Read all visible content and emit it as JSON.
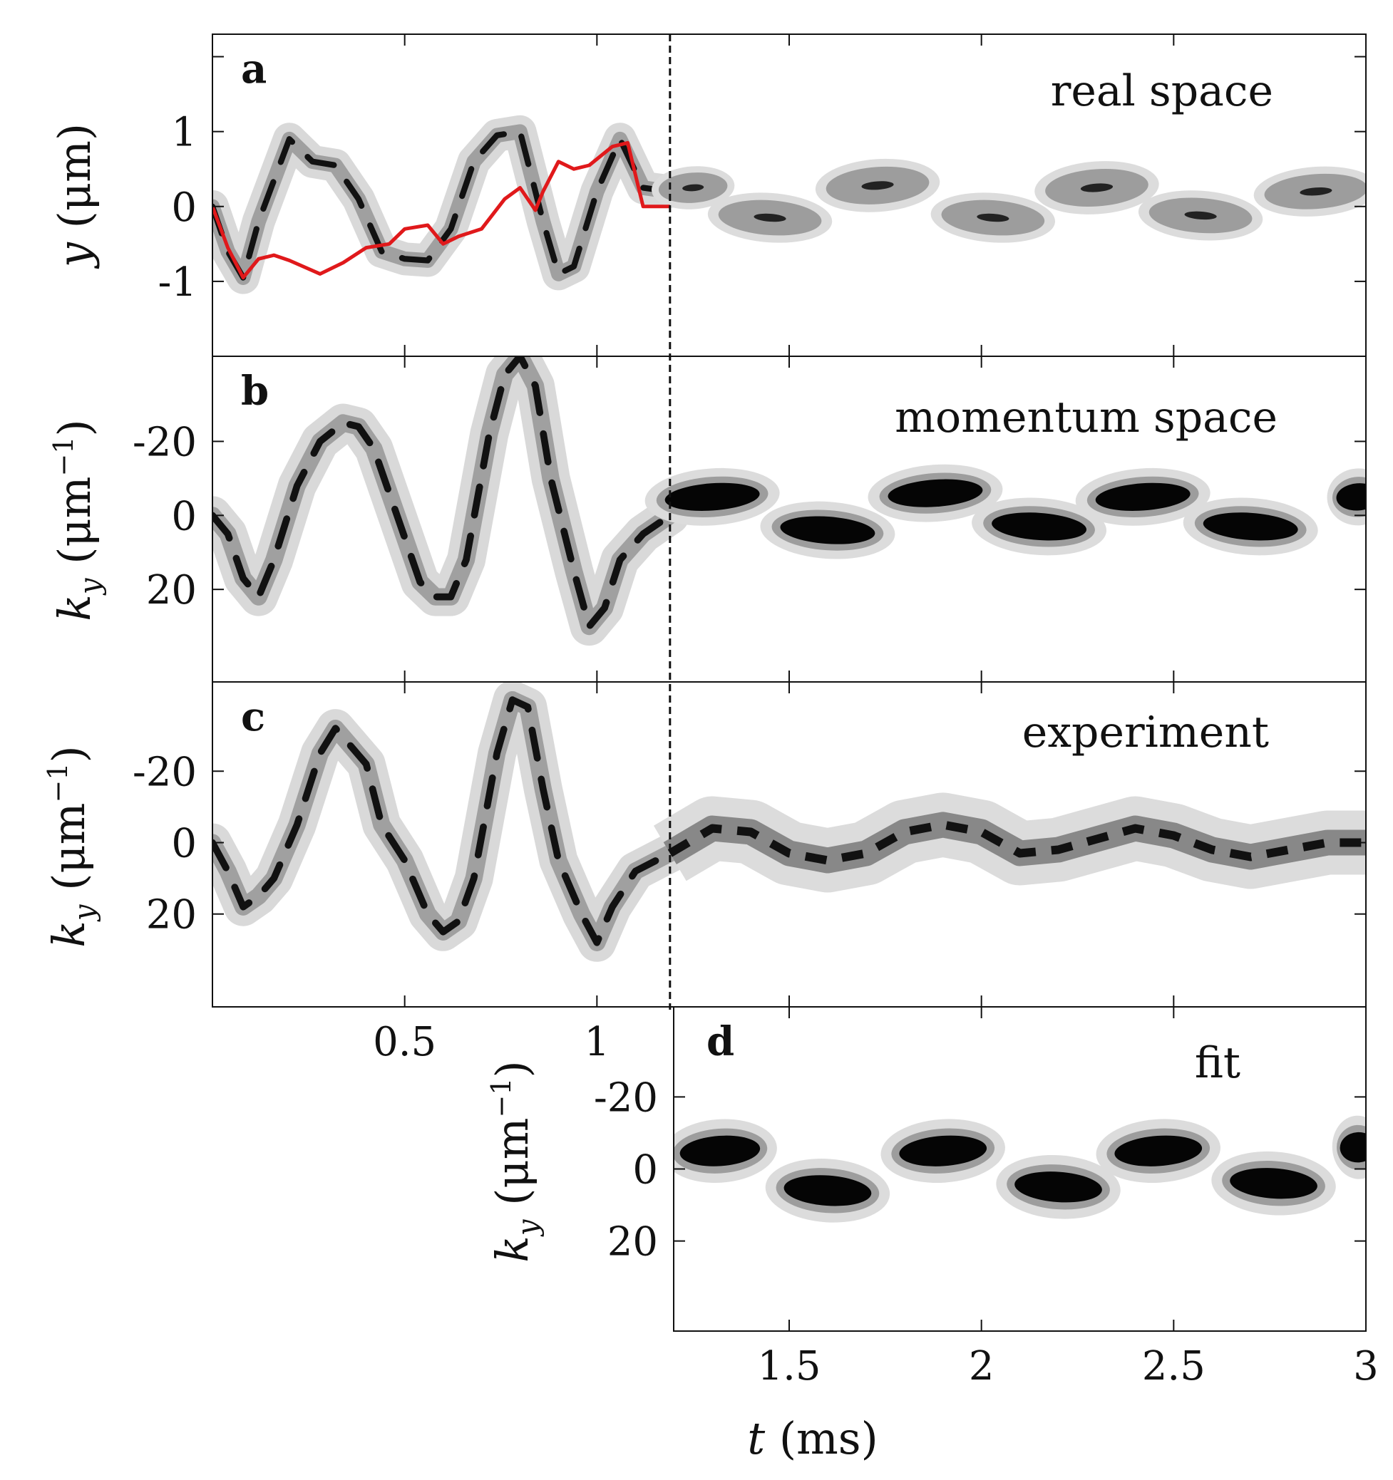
{
  "chart_data": [
    {
      "id": "a",
      "type": "heatmap",
      "panel_label": "a",
      "title": "real space",
      "ylabel": "y (μm)",
      "ylabel_parts": [
        "y",
        " (μm)"
      ],
      "xlim": [
        0,
        3
      ],
      "ylim": [
        -2,
        2.3
      ],
      "y_ticks": [
        1,
        0,
        -1
      ],
      "y_tick_labels": [
        "1",
        "0",
        "-1"
      ],
      "x_ticks": [
        0.5,
        1,
        1.5,
        2,
        2.5
      ],
      "switch_time": 1.19,
      "density_ridge": {
        "t": [
          0,
          0.04,
          0.08,
          0.12,
          0.2,
          0.26,
          0.32,
          0.38,
          0.44,
          0.5,
          0.56,
          0.62,
          0.68,
          0.74,
          0.8,
          0.86,
          0.9,
          0.94,
          1.0,
          1.06,
          1.12,
          1.19
        ],
        "value": [
          0,
          -0.6,
          -0.95,
          -0.2,
          0.9,
          0.6,
          0.55,
          0.1,
          -0.6,
          -0.7,
          -0.72,
          -0.3,
          0.6,
          0.95,
          1.0,
          -0.2,
          -0.9,
          -0.8,
          0.2,
          0.9,
          0.25,
          0.2
        ]
      },
      "red_curve": {
        "t": [
          0,
          0.04,
          0.08,
          0.12,
          0.16,
          0.2,
          0.28,
          0.34,
          0.4,
          0.46,
          0.5,
          0.56,
          0.6,
          0.64,
          0.7,
          0.76,
          0.8,
          0.84,
          0.86,
          0.9,
          0.94,
          0.98,
          1.04,
          1.08,
          1.12,
          1.19
        ],
        "value": [
          0,
          -0.55,
          -0.95,
          -0.7,
          -0.65,
          -0.72,
          -0.9,
          -0.75,
          -0.55,
          -0.5,
          -0.3,
          -0.25,
          -0.5,
          -0.4,
          -0.3,
          0.1,
          0.25,
          -0.05,
          0.2,
          0.6,
          0.5,
          0.55,
          0.8,
          0.85,
          0.0,
          0.0
        ]
      },
      "blobs": [
        {
          "t": 1.25,
          "value": 0.25,
          "w": 0.08,
          "h": 0.13
        },
        {
          "t": 1.45,
          "value": -0.15,
          "w": 0.12,
          "h": 0.15
        },
        {
          "t": 1.73,
          "value": 0.28,
          "w": 0.12,
          "h": 0.16
        },
        {
          "t": 2.03,
          "value": -0.15,
          "w": 0.12,
          "h": 0.15
        },
        {
          "t": 2.3,
          "value": 0.25,
          "w": 0.12,
          "h": 0.16
        },
        {
          "t": 2.57,
          "value": -0.12,
          "w": 0.12,
          "h": 0.15
        },
        {
          "t": 2.87,
          "value": 0.2,
          "w": 0.12,
          "h": 0.15
        }
      ]
    },
    {
      "id": "b",
      "type": "heatmap",
      "panel_label": "b",
      "title": "momentum space",
      "ylabel": "k_y (μm^-1)",
      "ylabel_parts": [
        "k",
        "y",
        " (μm",
        "−1",
        ")"
      ],
      "xlim": [
        0,
        3
      ],
      "ylim": [
        -43,
        45
      ],
      "y_ticks": [
        -20,
        0,
        20
      ],
      "y_tick_labels": [
        "-20",
        "0",
        "20"
      ],
      "x_ticks": [
        0.5,
        1,
        1.5,
        2,
        2.5
      ],
      "switch_time": 1.19,
      "density_ridge": {
        "t": [
          0,
          0.04,
          0.08,
          0.12,
          0.16,
          0.22,
          0.28,
          0.34,
          0.38,
          0.42,
          0.48,
          0.54,
          0.58,
          0.62,
          0.66,
          0.72,
          0.76,
          0.8,
          0.84,
          0.88,
          0.94,
          0.98,
          1.02,
          1.06,
          1.12,
          1.19
        ],
        "value": [
          0,
          5,
          17,
          22,
          12,
          -8,
          -20,
          -25,
          -24,
          -18,
          0,
          18,
          22,
          22,
          12,
          -22,
          -38,
          -43,
          -35,
          -10,
          15,
          30,
          25,
          12,
          5,
          0
        ]
      },
      "blobs": [
        {
          "t": 1.3,
          "value": -5,
          "w": 0.13,
          "h": 3.5
        },
        {
          "t": 1.6,
          "value": 4,
          "w": 0.13,
          "h": 3.5
        },
        {
          "t": 1.88,
          "value": -6,
          "w": 0.13,
          "h": 3.5
        },
        {
          "t": 2.15,
          "value": 3,
          "w": 0.13,
          "h": 3.5
        },
        {
          "t": 2.42,
          "value": -5,
          "w": 0.13,
          "h": 3.5
        },
        {
          "t": 2.7,
          "value": 3,
          "w": 0.13,
          "h": 3.5
        },
        {
          "t": 2.98,
          "value": -5,
          "w": 0.06,
          "h": 3.5
        }
      ]
    },
    {
      "id": "c",
      "type": "heatmap",
      "panel_label": "c",
      "title": "experiment",
      "ylabel": "k_y (μm^-1)",
      "ylabel_parts": [
        "k",
        "y",
        " (μm",
        "−1",
        ")"
      ],
      "xlim": [
        0,
        3
      ],
      "ylim": [
        -45,
        46
      ],
      "y_ticks": [
        -20,
        0,
        20
      ],
      "y_tick_labels": [
        "-20",
        "0",
        "20"
      ],
      "x_ticks": [
        0.5,
        1,
        1.5,
        2,
        2.5
      ],
      "x_tick_labels": [
        "0.5",
        "1"
      ],
      "x_tick_label_values": [
        0.5,
        1
      ],
      "switch_time": 1.19,
      "density_ridge": {
        "t": [
          0,
          0.04,
          0.08,
          0.12,
          0.16,
          0.22,
          0.28,
          0.32,
          0.36,
          0.4,
          0.44,
          0.5,
          0.56,
          0.6,
          0.64,
          0.68,
          0.74,
          0.78,
          0.82,
          0.86,
          0.9,
          0.96,
          1.0,
          1.04,
          1.1,
          1.19
        ],
        "value": [
          0,
          8,
          18,
          15,
          10,
          -5,
          -25,
          -32,
          -27,
          -22,
          -5,
          5,
          20,
          25,
          22,
          10,
          -25,
          -40,
          -38,
          -15,
          5,
          20,
          28,
          18,
          8,
          3
        ],
        "later": {
          "t": [
            1.19,
            1.3,
            1.4,
            1.5,
            1.6,
            1.7,
            1.8,
            1.9,
            2.0,
            2.1,
            2.2,
            2.3,
            2.4,
            2.5,
            2.6,
            2.7,
            2.8,
            2.9,
            3.0
          ],
          "value": [
            3,
            -4,
            -3,
            3,
            5,
            3,
            -3,
            -5,
            -3,
            3,
            2,
            -1,
            -4,
            -2,
            2,
            4,
            2,
            0,
            0
          ]
        }
      }
    },
    {
      "id": "d",
      "type": "heatmap",
      "panel_label": "d",
      "title": "fit",
      "ylabel": "k_y (μm^-1)",
      "ylabel_parts": [
        "k",
        "y",
        " (μm",
        "−1",
        ")"
      ],
      "xlim": [
        1.2,
        3
      ],
      "ylim": [
        -45,
        45
      ],
      "y_ticks": [
        -20,
        0,
        20
      ],
      "y_tick_labels": [
        "-20",
        "0",
        "20"
      ],
      "x_ticks": [
        1.5,
        2,
        2.5,
        3
      ],
      "x_tick_labels": [
        "1.5",
        "2",
        "2.5",
        "3"
      ],
      "blobs": [
        {
          "t": 1.32,
          "value": -5,
          "w": 0.11,
          "h": 4
        },
        {
          "t": 1.6,
          "value": 6,
          "w": 0.12,
          "h": 4
        },
        {
          "t": 1.9,
          "value": -5,
          "w": 0.12,
          "h": 4
        },
        {
          "t": 2.2,
          "value": 5,
          "w": 0.12,
          "h": 4
        },
        {
          "t": 2.46,
          "value": -5,
          "w": 0.12,
          "h": 4
        },
        {
          "t": 2.76,
          "value": 4,
          "w": 0.12,
          "h": 4
        },
        {
          "t": 2.98,
          "value": -6,
          "w": 0.05,
          "h": 4
        }
      ]
    }
  ],
  "shared_xlabel": "t (ms)",
  "shared_xlabel_parts": [
    "t",
    " (ms)"
  ]
}
